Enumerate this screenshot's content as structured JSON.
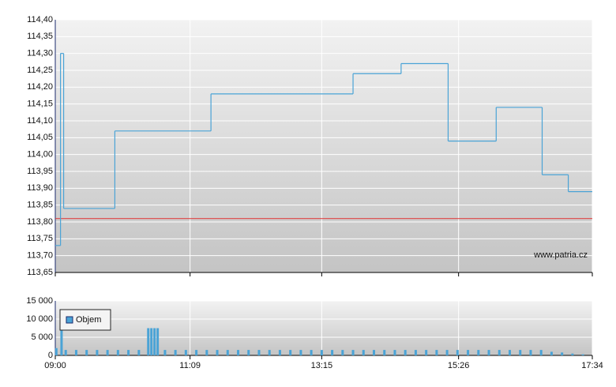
{
  "chart_data": [
    {
      "type": "line",
      "step": "post",
      "color": "#4aa3d6",
      "x": [
        540,
        545,
        548,
        597,
        689,
        825,
        871,
        916,
        962,
        1006,
        1031,
        1054
      ],
      "values": [
        113.73,
        114.3,
        113.84,
        114.07,
        114.18,
        114.24,
        114.27,
        114.04,
        114.14,
        113.94,
        113.89,
        113.89
      ],
      "xlim": [
        540,
        1054
      ],
      "ylim": [
        113.65,
        114.4
      ],
      "yticks": [
        {
          "value": 113.65,
          "label": "113,65"
        },
        {
          "value": 113.7,
          "label": "113,70"
        },
        {
          "value": 113.75,
          "label": "113,75"
        },
        {
          "value": 113.8,
          "label": "113,80"
        },
        {
          "value": 113.85,
          "label": "113,85"
        },
        {
          "value": 113.9,
          "label": "113,90"
        },
        {
          "value": 113.95,
          "label": "113,95"
        },
        {
          "value": 114.0,
          "label": "114,00"
        },
        {
          "value": 114.05,
          "label": "114,05"
        },
        {
          "value": 114.1,
          "label": "114,10"
        },
        {
          "value": 114.15,
          "label": "114,15"
        },
        {
          "value": 114.2,
          "label": "114,20"
        },
        {
          "value": 114.25,
          "label": "114,25"
        },
        {
          "value": 114.3,
          "label": "114,30"
        },
        {
          "value": 114.35,
          "label": "114,35"
        },
        {
          "value": 114.4,
          "label": "114,40"
        }
      ],
      "grid": true,
      "reference_line": {
        "value": 113.81,
        "color": "#e03030"
      },
      "watermark": "www.patria.cz"
    },
    {
      "type": "bar",
      "x": [
        541,
        546,
        550,
        560,
        570,
        580,
        590,
        600,
        610,
        620,
        629,
        632,
        635,
        638,
        645,
        655,
        665,
        675,
        685,
        695,
        705,
        715,
        725,
        735,
        745,
        755,
        765,
        775,
        785,
        795,
        805,
        815,
        825,
        835,
        845,
        855,
        865,
        875,
        885,
        895,
        905,
        915,
        925,
        935,
        945,
        955,
        965,
        975,
        985,
        995,
        1005,
        1015,
        1025,
        1035,
        1045
      ],
      "series": [
        {
          "name": "Objem",
          "color": "#4aa3d6",
          "values": [
            2000,
            10600,
            1500,
            1500,
            1500,
            1500,
            1500,
            1500,
            1500,
            1500,
            7500,
            7500,
            7500,
            7500,
            1500,
            1500,
            1500,
            1500,
            1500,
            1500,
            1500,
            1500,
            1500,
            1500,
            1500,
            1500,
            1500,
            1500,
            1500,
            1500,
            1500,
            1500,
            1500,
            1500,
            1500,
            1500,
            1500,
            1500,
            1500,
            1500,
            1500,
            1500,
            1500,
            1500,
            1500,
            1500,
            1500,
            1500,
            1500,
            1500,
            1500,
            1000,
            800,
            500,
            300
          ]
        }
      ],
      "xlim": [
        540,
        1054
      ],
      "xticks": [
        {
          "value": 540,
          "label": "09:00"
        },
        {
          "value": 669,
          "label": "11:09"
        },
        {
          "value": 795,
          "label": "13:15"
        },
        {
          "value": 926,
          "label": "15:26"
        },
        {
          "value": 1054,
          "label": "17:34"
        }
      ],
      "ylim": [
        0,
        15000
      ],
      "yticks": [
        0,
        {
          "value": 5000,
          "label": "5 000"
        },
        {
          "value": 10000,
          "label": "10 000"
        },
        {
          "value": 15000,
          "label": "15 000"
        }
      ],
      "grid": true,
      "legend": "upper left"
    }
  ]
}
